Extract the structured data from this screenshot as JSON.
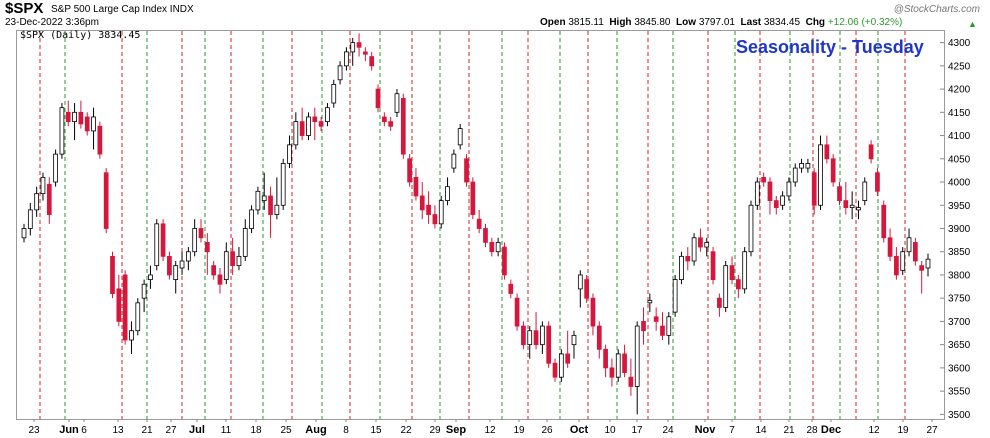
{
  "header": {
    "symbol": "$SPX",
    "name": "S&P 500 Large Cap Index  INDX",
    "date": "23-Dec-2022 3:36pm",
    "open_label": "Open",
    "open": "3815.11",
    "high_label": "High",
    "high": "3845.80",
    "low_label": "Low",
    "low": "3797.01",
    "last_label": "Last",
    "last": "3834.45",
    "chg_label": "Chg",
    "chg": "+12.06 (+0.32%)",
    "brand": "@StockCharts.com"
  },
  "legend": "$SPX (Daily) 3834.45",
  "annotation": "Seasonality - Tuesday",
  "colors": {
    "up": "#000000",
    "down": "#d6173d",
    "title": "#1f37c7",
    "tuesday_line": "#2a9a2a",
    "monday_line": "#d62020"
  },
  "chart_data": {
    "type": "candlestick",
    "title": "Seasonality - Tuesday",
    "series_name": "$SPX (Daily)",
    "ylim": [
      3490,
      4325
    ],
    "yticks": [
      3500,
      3550,
      3600,
      3650,
      3700,
      3750,
      3800,
      3850,
      3900,
      3950,
      4000,
      4050,
      4100,
      4150,
      4200,
      4250,
      4300
    ],
    "xticks": [
      {
        "label": "23",
        "month": false
      },
      {
        "label": "Jun",
        "month": true
      },
      {
        "label": "6",
        "month": false
      },
      {
        "label": "13",
        "month": false
      },
      {
        "label": "21",
        "month": false
      },
      {
        "label": "27",
        "month": false
      },
      {
        "label": "Jul",
        "month": true
      },
      {
        "label": "11",
        "month": false
      },
      {
        "label": "18",
        "month": false
      },
      {
        "label": "25",
        "month": false
      },
      {
        "label": "Aug",
        "month": true
      },
      {
        "label": "8",
        "month": false
      },
      {
        "label": "15",
        "month": false
      },
      {
        "label": "22",
        "month": false
      },
      {
        "label": "29",
        "month": false
      },
      {
        "label": "Sep",
        "month": true
      },
      {
        "label": "12",
        "month": false
      },
      {
        "label": "19",
        "month": false
      },
      {
        "label": "26",
        "month": false
      },
      {
        "label": "Oct",
        "month": true
      },
      {
        "label": "10",
        "month": false
      },
      {
        "label": "17",
        "month": false
      },
      {
        "label": "24",
        "month": false
      },
      {
        "label": "Nov",
        "month": true
      },
      {
        "label": "7",
        "month": false
      },
      {
        "label": "14",
        "month": false
      },
      {
        "label": "21",
        "month": false
      },
      {
        "label": "28",
        "month": false
      },
      {
        "label": "Dec",
        "month": true
      },
      {
        "label": "12",
        "month": false
      },
      {
        "label": "19",
        "month": false
      },
      {
        "label": "27",
        "month": false
      }
    ],
    "vlines": [
      {
        "weekday": "Monday",
        "color": "red"
      },
      {
        "weekday": "Tuesday",
        "color": "green"
      }
    ],
    "ohlc": [
      [
        3880,
        3910,
        3870,
        3900
      ],
      [
        3900,
        3955,
        3885,
        3940
      ],
      [
        3940,
        3990,
        3925,
        3975
      ],
      [
        3975,
        4020,
        3960,
        4010
      ],
      [
        3995,
        4010,
        3910,
        3930
      ],
      [
        4000,
        4070,
        3990,
        4060
      ],
      [
        4060,
        4170,
        4050,
        4160
      ],
      [
        4150,
        4175,
        4120,
        4130
      ],
      [
        4130,
        4170,
        4090,
        4150
      ],
      [
        4150,
        4175,
        4115,
        4125
      ],
      [
        4140,
        4150,
        4100,
        4110
      ],
      [
        4110,
        4160,
        4070,
        4140
      ],
      [
        4120,
        4130,
        4050,
        4060
      ],
      [
        4020,
        4030,
        3890,
        3900
      ],
      [
        3840,
        3850,
        3750,
        3760
      ],
      [
        3770,
        3800,
        3690,
        3700
      ],
      [
        3800,
        3810,
        3650,
        3660
      ],
      [
        3660,
        3700,
        3630,
        3680
      ],
      [
        3680,
        3750,
        3670,
        3740
      ],
      [
        3750,
        3790,
        3720,
        3780
      ],
      [
        3790,
        3820,
        3770,
        3800
      ],
      [
        3820,
        3920,
        3810,
        3910
      ],
      [
        3910,
        3920,
        3830,
        3840
      ],
      [
        3840,
        3850,
        3790,
        3800
      ],
      [
        3790,
        3830,
        3760,
        3820
      ],
      [
        3815,
        3850,
        3800,
        3830
      ],
      [
        3830,
        3860,
        3810,
        3850
      ],
      [
        3850,
        3920,
        3840,
        3900
      ],
      [
        3900,
        3920,
        3870,
        3880
      ],
      [
        3870,
        3890,
        3800,
        3850
      ],
      [
        3820,
        3830,
        3790,
        3800
      ],
      [
        3800,
        3815,
        3760,
        3780
      ],
      [
        3790,
        3870,
        3780,
        3850
      ],
      [
        3850,
        3880,
        3800,
        3820
      ],
      [
        3820,
        3860,
        3810,
        3840
      ],
      [
        3840,
        3920,
        3830,
        3900
      ],
      [
        3900,
        3950,
        3890,
        3940
      ],
      [
        3940,
        3990,
        3930,
        3980
      ],
      [
        3960,
        4020,
        3940,
        3970
      ],
      [
        3970,
        3990,
        3880,
        3930
      ],
      [
        3930,
        4010,
        3920,
        3950
      ],
      [
        3950,
        4050,
        3940,
        4040
      ],
      [
        4040,
        4100,
        4030,
        4080
      ],
      [
        4080,
        4150,
        4070,
        4130
      ],
      [
        4130,
        4160,
        4090,
        4100
      ],
      [
        4100,
        4150,
        4090,
        4140
      ],
      [
        4140,
        4160,
        4090,
        4130
      ],
      [
        4130,
        4140,
        4110,
        4120
      ],
      [
        4130,
        4170,
        4120,
        4160
      ],
      [
        4170,
        4220,
        4160,
        4210
      ],
      [
        4220,
        4260,
        4210,
        4250
      ],
      [
        4250,
        4290,
        4240,
        4280
      ],
      [
        4280,
        4310,
        4250,
        4300
      ],
      [
        4300,
        4320,
        4270,
        4290
      ],
      [
        4280,
        4290,
        4260,
        4275
      ],
      [
        4270,
        4280,
        4240,
        4250
      ],
      [
        4200,
        4210,
        4150,
        4160
      ],
      [
        4140,
        4150,
        4120,
        4130
      ],
      [
        4130,
        4140,
        4110,
        4120
      ],
      [
        4150,
        4200,
        4140,
        4190
      ],
      [
        4180,
        4190,
        4050,
        4060
      ],
      [
        4050,
        4060,
        3990,
        4000
      ],
      [
        4010,
        4030,
        3960,
        3970
      ],
      [
        3970,
        4000,
        3920,
        3940
      ],
      [
        3950,
        3980,
        3910,
        3930
      ],
      [
        3930,
        3950,
        3900,
        3910
      ],
      [
        3910,
        3970,
        3900,
        3960
      ],
      [
        3960,
        4010,
        3950,
        3990
      ],
      [
        4030,
        4070,
        4020,
        4060
      ],
      [
        4080,
        4125,
        4070,
        4115
      ],
      [
        4050,
        4060,
        3990,
        4000
      ],
      [
        4000,
        4010,
        3920,
        3930
      ],
      [
        3920,
        3940,
        3890,
        3900
      ],
      [
        3900,
        3910,
        3860,
        3870
      ],
      [
        3870,
        3880,
        3840,
        3850
      ],
      [
        3850,
        3880,
        3840,
        3870
      ],
      [
        3860,
        3870,
        3790,
        3800
      ],
      [
        3780,
        3790,
        3750,
        3760
      ],
      [
        3750,
        3760,
        3680,
        3690
      ],
      [
        3690,
        3700,
        3640,
        3650
      ],
      [
        3650,
        3690,
        3620,
        3680
      ],
      [
        3680,
        3720,
        3640,
        3650
      ],
      [
        3650,
        3700,
        3630,
        3690
      ],
      [
        3690,
        3700,
        3600,
        3610
      ],
      [
        3610,
        3620,
        3570,
        3580
      ],
      [
        3580,
        3640,
        3570,
        3630
      ],
      [
        3630,
        3680,
        3600,
        3610
      ],
      [
        3650,
        3680,
        3620,
        3670
      ],
      [
        3770,
        3810,
        3730,
        3800
      ],
      [
        3790,
        3800,
        3740,
        3750
      ],
      [
        3750,
        3760,
        3670,
        3690
      ],
      [
        3690,
        3700,
        3620,
        3640
      ],
      [
        3640,
        3650,
        3580,
        3600
      ],
      [
        3600,
        3620,
        3560,
        3580
      ],
      [
        3580,
        3640,
        3570,
        3630
      ],
      [
        3630,
        3650,
        3580,
        3590
      ],
      [
        3580,
        3620,
        3540,
        3560
      ],
      [
        3560,
        3700,
        3500,
        3690
      ],
      [
        3700,
        3730,
        3650,
        3680
      ],
      [
        3740,
        3760,
        3720,
        3745
      ],
      [
        3710,
        3730,
        3680,
        3700
      ],
      [
        3690,
        3720,
        3660,
        3670
      ],
      [
        3670,
        3720,
        3650,
        3710
      ],
      [
        3720,
        3800,
        3710,
        3790
      ],
      [
        3790,
        3850,
        3780,
        3840
      ],
      [
        3840,
        3860,
        3810,
        3830
      ],
      [
        3830,
        3890,
        3820,
        3880
      ],
      [
        3880,
        3900,
        3850,
        3860
      ],
      [
        3860,
        3880,
        3840,
        3870
      ],
      [
        3850,
        3860,
        3780,
        3790
      ],
      [
        3750,
        3760,
        3710,
        3730
      ],
      [
        3730,
        3830,
        3720,
        3820
      ],
      [
        3820,
        3840,
        3780,
        3790
      ],
      [
        3790,
        3800,
        3750,
        3770
      ],
      [
        3770,
        3860,
        3760,
        3850
      ],
      [
        3850,
        3960,
        3840,
        3950
      ],
      [
        3950,
        4010,
        3940,
        4000
      ],
      [
        4010,
        4020,
        3990,
        4000
      ],
      [
        4000,
        4010,
        3930,
        3960
      ],
      [
        3960,
        3970,
        3930,
        3945
      ],
      [
        3950,
        3980,
        3940,
        3970
      ],
      [
        3970,
        4010,
        3960,
        4000
      ],
      [
        4000,
        4040,
        3990,
        4030
      ],
      [
        4030,
        4050,
        4020,
        4040
      ],
      [
        4030,
        4050,
        4020,
        4040
      ],
      [
        4020,
        4030,
        3930,
        3950
      ],
      [
        3950,
        4100,
        3940,
        4080
      ],
      [
        4080,
        4100,
        4040,
        4050
      ],
      [
        4050,
        4060,
        3990,
        4000
      ],
      [
        3990,
        4000,
        3950,
        3960
      ],
      [
        3960,
        4000,
        3930,
        3945
      ],
      [
        3945,
        3980,
        3920,
        3950
      ],
      [
        3940,
        3960,
        3920,
        3945
      ],
      [
        3960,
        4010,
        3950,
        4000
      ],
      [
        4080,
        4090,
        4040,
        4050
      ],
      [
        4020,
        4030,
        3970,
        3980
      ],
      [
        3950,
        3960,
        3870,
        3880
      ],
      [
        3880,
        3900,
        3830,
        3840
      ],
      [
        3840,
        3860,
        3790,
        3800
      ],
      [
        3810,
        3860,
        3800,
        3850
      ],
      [
        3850,
        3900,
        3840,
        3880
      ],
      [
        3870,
        3880,
        3820,
        3830
      ],
      [
        3820,
        3830,
        3760,
        3810
      ],
      [
        3815,
        3846,
        3797,
        3834
      ]
    ]
  }
}
